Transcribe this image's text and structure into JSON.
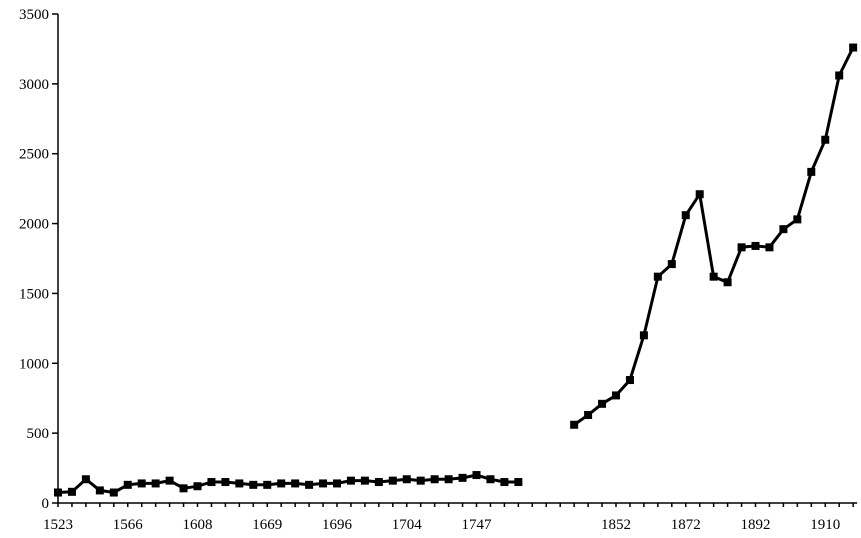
{
  "chart_data": {
    "type": "line",
    "title": "",
    "xlabel": "",
    "ylabel": "",
    "ylim": [
      0,
      3500
    ],
    "y_ticks": [
      0,
      500,
      1000,
      1500,
      2000,
      2500,
      3000,
      3500
    ],
    "x_tick_labels": [
      "1523",
      "1566",
      "1608",
      "1669",
      "1696",
      "1704",
      "1747",
      "1852",
      "1872",
      "1892",
      "1910"
    ],
    "x_tick_positions": [
      0,
      5,
      10,
      15,
      20,
      25,
      30,
      40,
      45,
      50,
      55
    ],
    "grid": false,
    "legend": "none",
    "series": [
      {
        "x": [
          0,
          1,
          2,
          3,
          4,
          5,
          6,
          7,
          8,
          9,
          10,
          11,
          12,
          13,
          14,
          15,
          16,
          17,
          18,
          19,
          20,
          21,
          22,
          23,
          24,
          25,
          26,
          27,
          28,
          29,
          30,
          31,
          32,
          33
        ],
        "values": [
          75,
          80,
          170,
          90,
          75,
          130,
          140,
          140,
          160,
          105,
          120,
          150,
          150,
          140,
          130,
          130,
          140,
          140,
          130,
          140,
          140,
          160,
          160,
          150,
          160,
          170,
          160,
          170,
          170,
          180,
          200,
          170,
          150,
          150
        ]
      },
      {
        "x": [
          37,
          38,
          39,
          40,
          41,
          42,
          43,
          44,
          45,
          46,
          47,
          48,
          49,
          50,
          51,
          52,
          53,
          54,
          55,
          56,
          57
        ],
        "values": [
          560,
          630,
          710,
          770,
          880,
          1200,
          1620,
          1710,
          2060,
          2210,
          1620,
          1580,
          1830,
          1840,
          1830,
          1960,
          2030,
          2370,
          2600,
          3060,
          3260
        ]
      }
    ],
    "marker": "square",
    "color": "#000000"
  }
}
